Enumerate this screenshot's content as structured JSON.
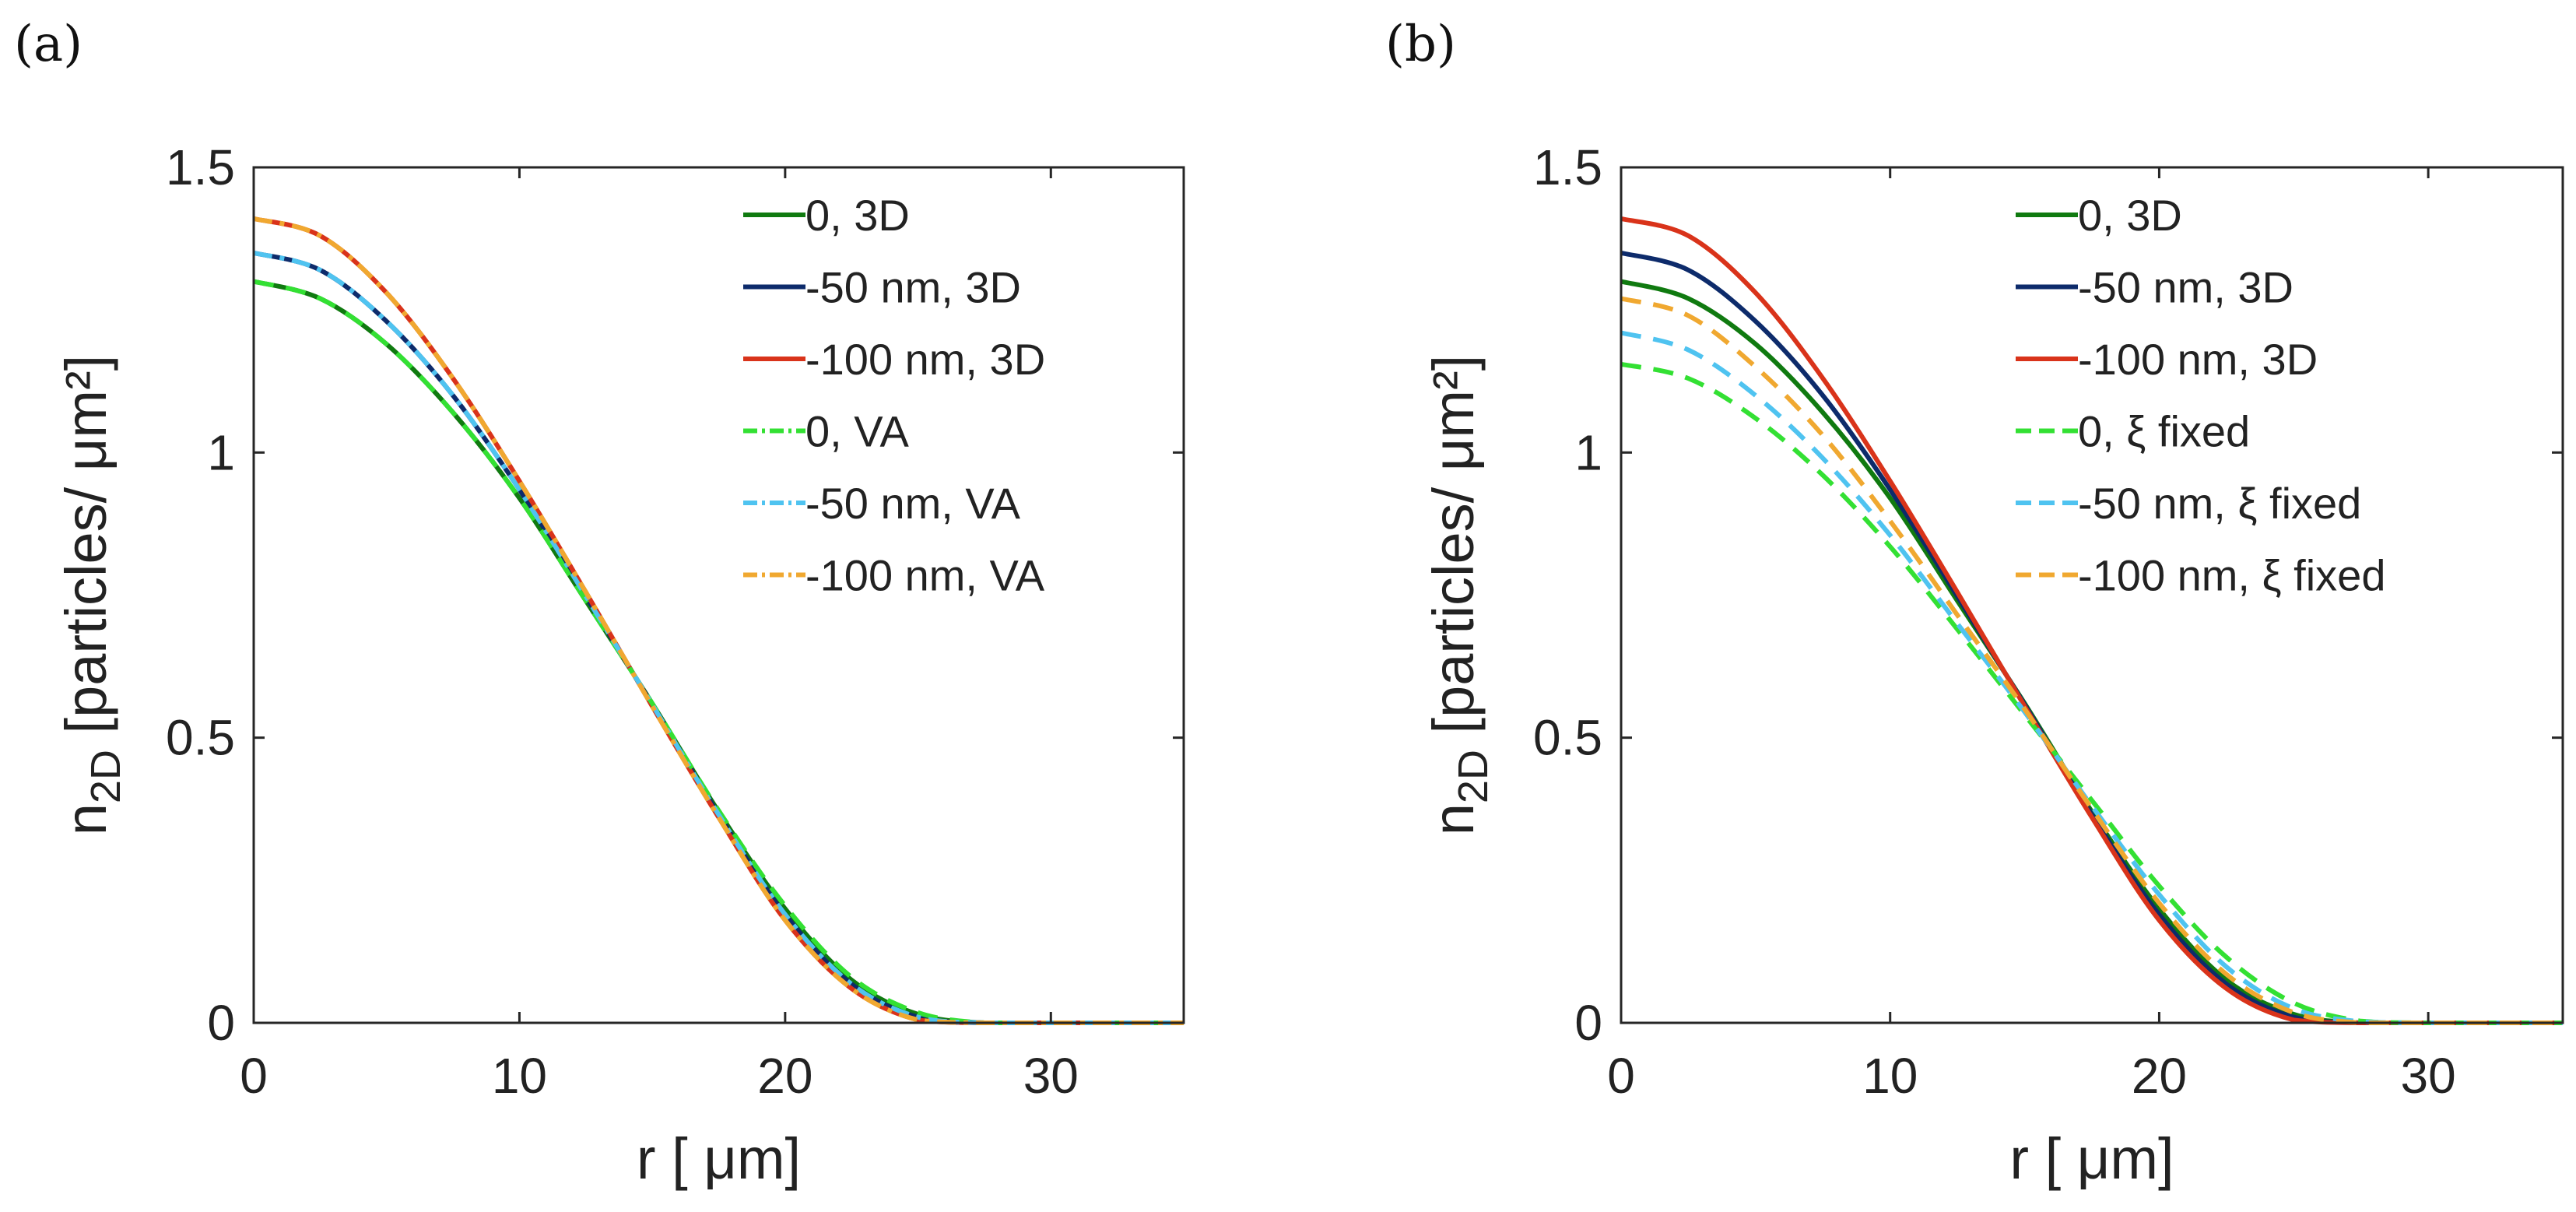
{
  "chart_data": [
    {
      "type": "line",
      "panel": "(a)",
      "xlabel": "r [ μm]",
      "ylabel": "n2D [particles/ μm²]",
      "ylabel_main": "n",
      "ylabel_sub": "2D",
      "ylabel_rest": " [particles/  μm²]",
      "xlim": [
        0,
        35
      ],
      "ylim": [
        0,
        1.5
      ],
      "xticks": [
        0,
        10,
        20,
        30
      ],
      "xtick_labels": [
        "0",
        "10",
        "20",
        "30"
      ],
      "yticks": [
        0,
        0.5,
        1,
        1.5
      ],
      "ytick_labels": [
        "0",
        "0.5",
        "1",
        "1.5"
      ],
      "legend_position": "top-right",
      "series": [
        {
          "name": "0, 3D",
          "color": "#107a10",
          "style": "solid",
          "x": [
            0,
            2.5,
            5,
            7.5,
            10,
            12.5,
            15,
            17.5,
            20,
            22.5,
            25,
            27.5,
            30,
            35
          ],
          "y": [
            1.3,
            1.27,
            1.19,
            1.07,
            0.92,
            0.74,
            0.56,
            0.37,
            0.2,
            0.075,
            0.015,
            0.0,
            0.0,
            0.0
          ]
        },
        {
          "name": "-50 nm, 3D",
          "color": "#0d2b6b",
          "style": "solid",
          "x": [
            0,
            2.5,
            5,
            7.5,
            10,
            12.5,
            15,
            17.5,
            20,
            22.5,
            25,
            27.5,
            30,
            35
          ],
          "y": [
            1.35,
            1.32,
            1.23,
            1.1,
            0.935,
            0.748,
            0.558,
            0.365,
            0.19,
            0.068,
            0.01,
            0.0,
            0.0,
            0.0
          ]
        },
        {
          "name": "-100 nm, 3D",
          "color": "#d9331a",
          "style": "solid",
          "x": [
            0,
            2.5,
            5,
            7.5,
            10,
            12.5,
            15,
            17.5,
            20,
            22.5,
            25,
            27.5,
            30,
            35
          ],
          "y": [
            1.41,
            1.38,
            1.28,
            1.13,
            0.95,
            0.755,
            0.555,
            0.36,
            0.18,
            0.06,
            0.005,
            0.0,
            0.0,
            0.0
          ]
        },
        {
          "name": "0, VA",
          "color": "#33e033",
          "style": "dashed",
          "x": [
            0,
            2.5,
            5,
            7.5,
            10,
            12.5,
            15,
            17.5,
            20,
            22.5,
            25,
            27.5,
            30,
            35
          ],
          "y": [
            1.3,
            1.27,
            1.19,
            1.07,
            0.92,
            0.74,
            0.56,
            0.372,
            0.205,
            0.08,
            0.018,
            0.0,
            0.0,
            0.0
          ]
        },
        {
          "name": "-50 nm, VA",
          "color": "#4fc3f0",
          "style": "dashdot",
          "x": [
            0,
            2.5,
            5,
            7.5,
            10,
            12.5,
            15,
            17.5,
            20,
            22.5,
            25,
            27.5,
            30,
            35
          ],
          "y": [
            1.35,
            1.32,
            1.23,
            1.1,
            0.935,
            0.748,
            0.558,
            0.365,
            0.19,
            0.068,
            0.01,
            0.0,
            0.0,
            0.0
          ]
        },
        {
          "name": "-100 nm, VA",
          "color": "#f0a830",
          "style": "dashdot",
          "x": [
            0,
            2.5,
            5,
            7.5,
            10,
            12.5,
            15,
            17.5,
            20,
            22.5,
            25,
            27.5,
            30,
            35
          ],
          "y": [
            1.41,
            1.38,
            1.28,
            1.13,
            0.95,
            0.755,
            0.555,
            0.36,
            0.18,
            0.06,
            0.005,
            0.0,
            0.0,
            0.0
          ]
        }
      ]
    },
    {
      "type": "line",
      "panel": "(b)",
      "xlabel": "r [ μm]",
      "ylabel": "n2D [particles/ μm²]",
      "ylabel_main": "n",
      "ylabel_sub": "2D",
      "ylabel_rest": " [particles/  μm²]",
      "xlim": [
        0,
        35
      ],
      "ylim": [
        0,
        1.5
      ],
      "xticks": [
        0,
        10,
        20,
        30
      ],
      "xtick_labels": [
        "0",
        "10",
        "20",
        "30"
      ],
      "yticks": [
        0,
        0.5,
        1,
        1.5
      ],
      "ytick_labels": [
        "0",
        "0.5",
        "1",
        "1.5"
      ],
      "legend_position": "top-right",
      "series": [
        {
          "name": "0, 3D",
          "color": "#107a10",
          "style": "solid",
          "x": [
            0,
            2.5,
            5,
            7.5,
            10,
            12.5,
            15,
            17.5,
            20,
            22.5,
            25,
            27.5,
            30,
            35
          ],
          "y": [
            1.3,
            1.27,
            1.19,
            1.07,
            0.92,
            0.74,
            0.56,
            0.37,
            0.2,
            0.075,
            0.015,
            0.0,
            0.0,
            0.0
          ]
        },
        {
          "name": "-50 nm, 3D",
          "color": "#0d2b6b",
          "style": "solid",
          "x": [
            0,
            2.5,
            5,
            7.5,
            10,
            12.5,
            15,
            17.5,
            20,
            22.5,
            25,
            27.5,
            30,
            35
          ],
          "y": [
            1.35,
            1.32,
            1.23,
            1.1,
            0.935,
            0.748,
            0.558,
            0.365,
            0.19,
            0.068,
            0.01,
            0.0,
            0.0,
            0.0
          ]
        },
        {
          "name": "-100 nm, 3D",
          "color": "#d9331a",
          "style": "solid",
          "x": [
            0,
            2.5,
            5,
            7.5,
            10,
            12.5,
            15,
            17.5,
            20,
            22.5,
            25,
            27.5,
            30,
            35
          ],
          "y": [
            1.41,
            1.38,
            1.28,
            1.13,
            0.95,
            0.755,
            0.555,
            0.36,
            0.18,
            0.06,
            0.005,
            0.0,
            0.0,
            0.0
          ]
        },
        {
          "name": "0, ξ fixed",
          "color": "#33e033",
          "style": "dashed",
          "x": [
            0,
            2.5,
            5,
            7.5,
            10,
            12.5,
            15,
            17.5,
            20,
            22.5,
            25,
            27.5,
            30,
            35
          ],
          "y": [
            1.155,
            1.13,
            1.06,
            0.96,
            0.835,
            0.69,
            0.54,
            0.39,
            0.24,
            0.115,
            0.035,
            0.003,
            0.0,
            0.0
          ]
        },
        {
          "name": "-50 nm,   ξ fixed",
          "color": "#4fc3f0",
          "style": "dashed",
          "x": [
            0,
            2.5,
            5,
            7.5,
            10,
            12.5,
            15,
            17.5,
            20,
            22.5,
            25,
            27.5,
            30,
            35
          ],
          "y": [
            1.21,
            1.18,
            1.1,
            0.99,
            0.855,
            0.7,
            0.545,
            0.38,
            0.225,
            0.098,
            0.025,
            0.002,
            0.0,
            0.0
          ]
        },
        {
          "name": "-100 nm,   ξ fixed",
          "color": "#f0a830",
          "style": "dashed",
          "x": [
            0,
            2.5,
            5,
            7.5,
            10,
            12.5,
            15,
            17.5,
            20,
            22.5,
            25,
            27.5,
            30,
            35
          ],
          "y": [
            1.27,
            1.24,
            1.15,
            1.03,
            0.88,
            0.715,
            0.55,
            0.375,
            0.21,
            0.085,
            0.018,
            0.0,
            0.0,
            0.0
          ]
        }
      ]
    }
  ]
}
